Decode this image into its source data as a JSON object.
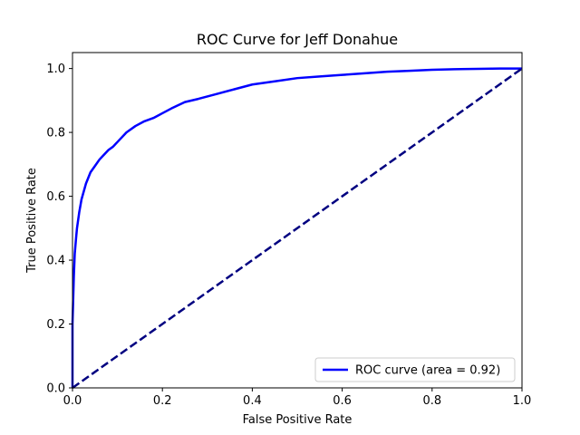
{
  "chart_data": {
    "type": "line",
    "title": "ROC Curve for Jeff Donahue",
    "xlabel": "False Positive Rate",
    "ylabel": "True Positive Rate",
    "xlim": [
      0.0,
      1.0
    ],
    "ylim": [
      0.0,
      1.05
    ],
    "x_ticks": [
      "0.0",
      "0.2",
      "0.4",
      "0.6",
      "0.8",
      "1.0"
    ],
    "y_ticks": [
      "0.0",
      "0.2",
      "0.4",
      "0.6",
      "0.8",
      "1.0"
    ],
    "grid": false,
    "legend_position": "lower-right",
    "series": [
      {
        "name": "ROC curve (area = 0.92)",
        "color": "#0000ff",
        "style": "solid",
        "x": [
          0.0,
          0.0,
          0.003,
          0.005,
          0.008,
          0.01,
          0.015,
          0.02,
          0.03,
          0.04,
          0.05,
          0.06,
          0.07,
          0.08,
          0.09,
          0.1,
          0.12,
          0.14,
          0.16,
          0.18,
          0.2,
          0.22,
          0.25,
          0.28,
          0.32,
          0.36,
          0.4,
          0.45,
          0.5,
          0.55,
          0.6,
          0.65,
          0.7,
          0.75,
          0.8,
          0.85,
          0.9,
          0.95,
          1.0
        ],
        "y": [
          0.0,
          0.2,
          0.35,
          0.42,
          0.47,
          0.5,
          0.55,
          0.59,
          0.64,
          0.675,
          0.695,
          0.715,
          0.73,
          0.745,
          0.755,
          0.77,
          0.8,
          0.82,
          0.835,
          0.845,
          0.86,
          0.875,
          0.895,
          0.905,
          0.92,
          0.935,
          0.95,
          0.96,
          0.97,
          0.975,
          0.98,
          0.985,
          0.99,
          0.993,
          0.996,
          0.998,
          0.999,
          1.0,
          1.0
        ]
      },
      {
        "name": "",
        "color": "#000080",
        "style": "dashed",
        "x": [
          0.0,
          1.0
        ],
        "y": [
          0.0,
          1.0
        ]
      }
    ]
  }
}
